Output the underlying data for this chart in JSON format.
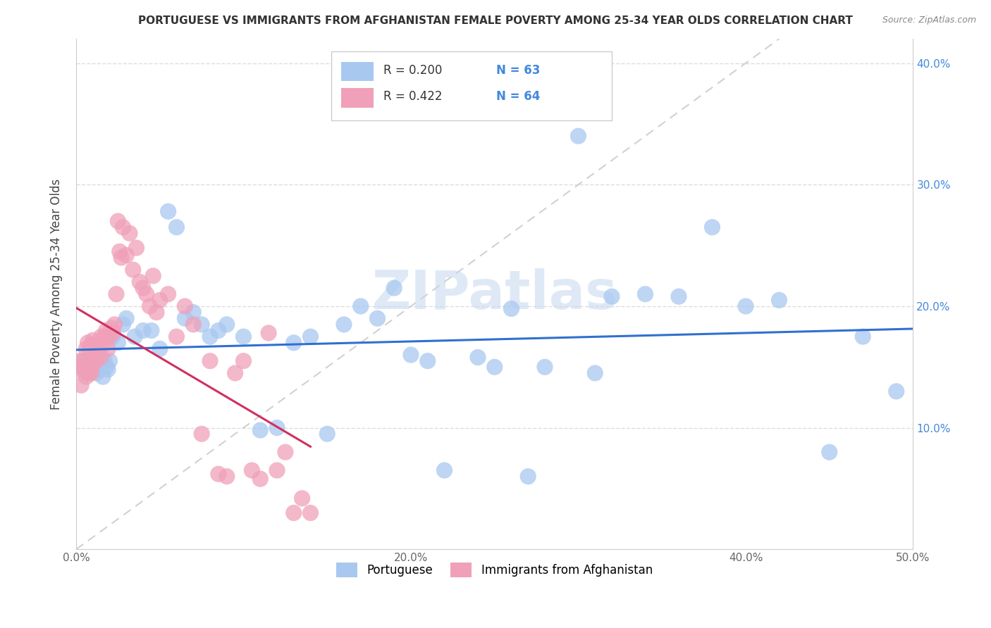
{
  "title": "PORTUGUESE VS IMMIGRANTS FROM AFGHANISTAN FEMALE POVERTY AMONG 25-34 YEAR OLDS CORRELATION CHART",
  "source": "Source: ZipAtlas.com",
  "ylabel": "Female Poverty Among 25-34 Year Olds",
  "xlim": [
    0.0,
    0.5
  ],
  "ylim": [
    0.0,
    0.42
  ],
  "xticks": [
    0.0,
    0.1,
    0.2,
    0.3,
    0.4,
    0.5
  ],
  "xticklabels": [
    "0.0%",
    "",
    "20.0%",
    "",
    "40.0%",
    "50.0%"
  ],
  "yticks_left": [],
  "yticks_right": [
    0.1,
    0.2,
    0.3,
    0.4
  ],
  "yticklabels_right": [
    "10.0%",
    "20.0%",
    "30.0%",
    "40.0%"
  ],
  "legend1_label": "Portuguese",
  "legend2_label": "Immigrants from Afghanistan",
  "R1": "0.200",
  "N1": "63",
  "R2": "0.422",
  "N2": "64",
  "blue_color": "#a8c8f0",
  "pink_color": "#f0a0b8",
  "blue_line_color": "#3070d0",
  "pink_line_color": "#d03060",
  "diagonal_color": "#cccccc",
  "watermark": "ZIPatlas",
  "port_x": [
    0.002,
    0.004,
    0.005,
    0.006,
    0.007,
    0.008,
    0.009,
    0.01,
    0.011,
    0.012,
    0.013,
    0.014,
    0.015,
    0.016,
    0.017,
    0.018,
    0.019,
    0.02,
    0.022,
    0.025,
    0.028,
    0.03,
    0.035,
    0.04,
    0.045,
    0.05,
    0.055,
    0.06,
    0.065,
    0.07,
    0.075,
    0.08,
    0.085,
    0.09,
    0.1,
    0.11,
    0.12,
    0.13,
    0.14,
    0.15,
    0.16,
    0.17,
    0.18,
    0.19,
    0.2,
    0.21,
    0.22,
    0.24,
    0.25,
    0.26,
    0.27,
    0.28,
    0.3,
    0.31,
    0.32,
    0.34,
    0.36,
    0.38,
    0.4,
    0.42,
    0.45,
    0.47,
    0.49
  ],
  "port_y": [
    0.15,
    0.155,
    0.148,
    0.152,
    0.145,
    0.155,
    0.15,
    0.148,
    0.152,
    0.145,
    0.15,
    0.148,
    0.155,
    0.142,
    0.155,
    0.15,
    0.148,
    0.155,
    0.175,
    0.17,
    0.185,
    0.19,
    0.175,
    0.18,
    0.18,
    0.165,
    0.278,
    0.265,
    0.19,
    0.195,
    0.185,
    0.175,
    0.18,
    0.185,
    0.175,
    0.098,
    0.1,
    0.17,
    0.175,
    0.095,
    0.185,
    0.2,
    0.19,
    0.215,
    0.16,
    0.155,
    0.065,
    0.158,
    0.15,
    0.198,
    0.06,
    0.15,
    0.34,
    0.145,
    0.208,
    0.21,
    0.208,
    0.265,
    0.2,
    0.205,
    0.08,
    0.175,
    0.13
  ],
  "afg_x": [
    0.001,
    0.002,
    0.003,
    0.004,
    0.005,
    0.006,
    0.006,
    0.007,
    0.007,
    0.008,
    0.008,
    0.009,
    0.009,
    0.01,
    0.01,
    0.011,
    0.012,
    0.012,
    0.013,
    0.014,
    0.015,
    0.015,
    0.016,
    0.017,
    0.018,
    0.019,
    0.02,
    0.021,
    0.022,
    0.023,
    0.024,
    0.025,
    0.026,
    0.027,
    0.028,
    0.03,
    0.032,
    0.034,
    0.036,
    0.038,
    0.04,
    0.042,
    0.044,
    0.046,
    0.048,
    0.05,
    0.055,
    0.06,
    0.065,
    0.07,
    0.075,
    0.08,
    0.085,
    0.09,
    0.095,
    0.1,
    0.105,
    0.11,
    0.115,
    0.12,
    0.125,
    0.13,
    0.135,
    0.14
  ],
  "afg_y": [
    0.148,
    0.155,
    0.135,
    0.15,
    0.155,
    0.142,
    0.165,
    0.148,
    0.17,
    0.145,
    0.165,
    0.145,
    0.168,
    0.152,
    0.172,
    0.16,
    0.155,
    0.168,
    0.162,
    0.17,
    0.158,
    0.175,
    0.168,
    0.175,
    0.18,
    0.165,
    0.175,
    0.182,
    0.178,
    0.185,
    0.21,
    0.27,
    0.245,
    0.24,
    0.265,
    0.242,
    0.26,
    0.23,
    0.248,
    0.22,
    0.215,
    0.21,
    0.2,
    0.225,
    0.195,
    0.205,
    0.21,
    0.175,
    0.2,
    0.185,
    0.095,
    0.155,
    0.062,
    0.06,
    0.145,
    0.155,
    0.065,
    0.058,
    0.178,
    0.065,
    0.08,
    0.03,
    0.042,
    0.03
  ]
}
